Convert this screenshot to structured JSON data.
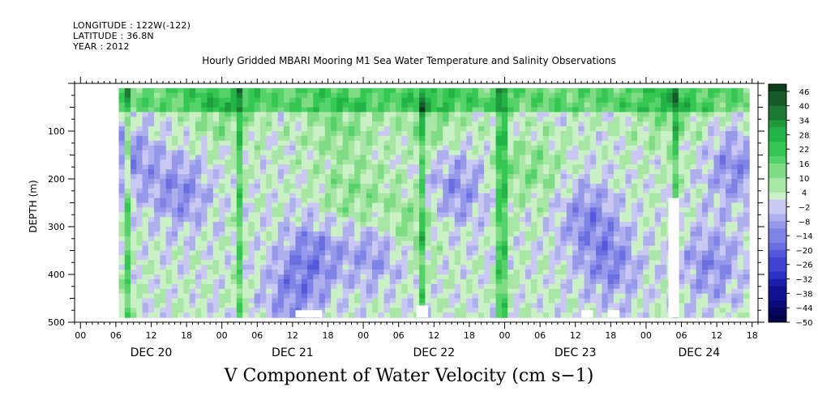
{
  "header": {
    "longitude": "LONGITUDE : 122W(-122)",
    "latitude": "LATITUDE : 36.8N",
    "year": "YEAR : 2012"
  },
  "chart_data": {
    "type": "heatmap",
    "title": "Hourly Gridded MBARI Mooring M1 Sea Water Temperature and Salinity Observations",
    "variable_title": "V Component of Water Velocity (cm s−1)",
    "ylabel": "DEPTH (m)",
    "xlabel": "",
    "x_axis": {
      "unit": "hours since 2012-12-20 00:00",
      "range": [
        -1,
        115
      ],
      "hour_ticks": [
        {
          "x": 0,
          "label": "00"
        },
        {
          "x": 6,
          "label": "06"
        },
        {
          "x": 12,
          "label": "12"
        },
        {
          "x": 18,
          "label": "18"
        },
        {
          "x": 24,
          "label": "00"
        },
        {
          "x": 30,
          "label": "06"
        },
        {
          "x": 36,
          "label": "12"
        },
        {
          "x": 42,
          "label": "18"
        },
        {
          "x": 48,
          "label": "00"
        },
        {
          "x": 54,
          "label": "06"
        },
        {
          "x": 60,
          "label": "12"
        },
        {
          "x": 66,
          "label": "18"
        },
        {
          "x": 72,
          "label": "00"
        },
        {
          "x": 78,
          "label": "06"
        },
        {
          "x": 84,
          "label": "12"
        },
        {
          "x": 90,
          "label": "18"
        },
        {
          "x": 96,
          "label": "00"
        },
        {
          "x": 102,
          "label": "06"
        },
        {
          "x": 108,
          "label": "12"
        },
        {
          "x": 114,
          "label": "18"
        }
      ],
      "day_labels": [
        {
          "x": 12,
          "label": "DEC 20"
        },
        {
          "x": 36,
          "label": "DEC 21"
        },
        {
          "x": 60,
          "label": "DEC 22"
        },
        {
          "x": 84,
          "label": "DEC 23"
        },
        {
          "x": 105,
          "label": "DEC 24"
        }
      ]
    },
    "y_axis": {
      "range": [
        500,
        0
      ],
      "reversed": true,
      "ticks": [
        100,
        200,
        300,
        400,
        500
      ],
      "data_depth_range": [
        10,
        490
      ]
    },
    "data_time_range": [
      6.5,
      113
    ],
    "colorbar": {
      "labels": [
        "46",
        "40",
        "34",
        "28",
        "22",
        "16",
        "10",
        "4",
        "-2",
        "-8",
        "-14",
        "-20",
        "-26",
        "-32",
        "-38",
        "-44",
        "-50"
      ],
      "levels": [
        49,
        46,
        43,
        40,
        37,
        34,
        31,
        28,
        25,
        22,
        19,
        16,
        13,
        10,
        7,
        4,
        1,
        -2,
        -5,
        -8,
        -11,
        -14,
        -17,
        -20,
        -23,
        -26,
        -29,
        -32,
        -35,
        -38,
        -41,
        -44,
        -47,
        -50
      ],
      "colors": [
        "#0d3b1c",
        "#165a2a",
        "#1d7a35",
        "#1f9a3c",
        "#22b446",
        "#36c652",
        "#56d26a",
        "#7fdc85",
        "#a8e6a6",
        "#caf0c6",
        "#c8c8f2",
        "#aeb0ee",
        "#9699ea",
        "#7f83e6",
        "#6a6ee0",
        "#5558da",
        "#4042d2",
        "#2c2fc4",
        "#1c1eac",
        "#111292",
        "#0a0b78",
        "#050660",
        "#02034a"
      ]
    },
    "grid": false,
    "legend": "colorbar-right",
    "features": {
      "dark_green_columns_hours": [
        8,
        27,
        58,
        71,
        72,
        101
      ],
      "blue_region_centers": [
        {
          "x": 17,
          "y": 230
        },
        {
          "x": 8,
          "y": 160
        },
        {
          "x": 40,
          "y": 350
        },
        {
          "x": 36,
          "y": 440
        },
        {
          "x": 50,
          "y": 350
        },
        {
          "x": 64,
          "y": 220
        },
        {
          "x": 86,
          "y": 280
        },
        {
          "x": 90,
          "y": 380
        },
        {
          "x": 107,
          "y": 380
        },
        {
          "x": 111,
          "y": 180
        }
      ],
      "green_region_centers": [
        {
          "x": 24,
          "y": 60
        },
        {
          "x": 44,
          "y": 90
        },
        {
          "x": 46,
          "y": 240
        },
        {
          "x": 60,
          "y": 70
        },
        {
          "x": 76,
          "y": 180
        },
        {
          "x": 100,
          "y": 60
        },
        {
          "x": 55,
          "y": 300
        }
      ],
      "data_gaps": [
        {
          "x0": 99.8,
          "x1": 101.6,
          "y0": 240,
          "y1": 490
        },
        {
          "x0": 36.5,
          "x1": 41,
          "y0": 475,
          "y1": 490
        },
        {
          "x0": 57,
          "x1": 59,
          "y0": 465,
          "y1": 490
        },
        {
          "x0": 85,
          "x1": 87,
          "y0": 475,
          "y1": 490
        },
        {
          "x0": 89.5,
          "x1": 91.5,
          "y0": 475,
          "y1": 490
        }
      ]
    }
  }
}
